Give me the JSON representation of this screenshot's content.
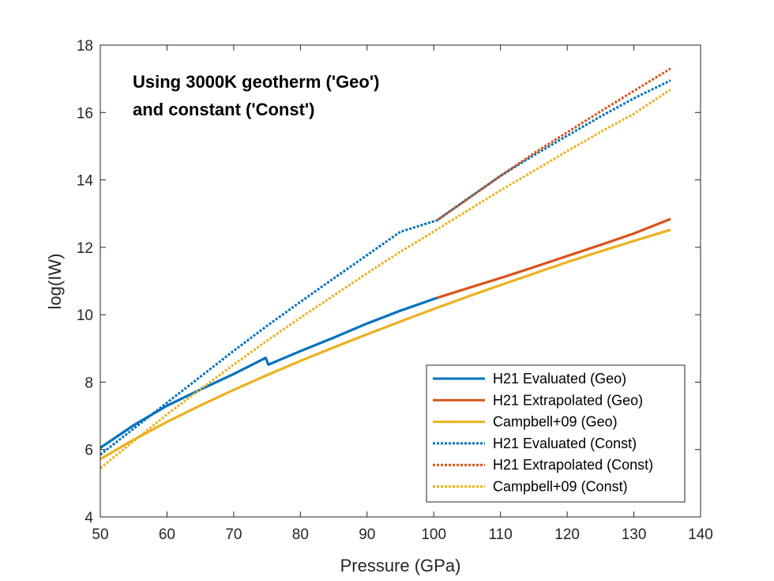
{
  "chart_data": {
    "type": "line",
    "xlabel": "Pressure (GPa)",
    "ylabel": "log(IW)",
    "xlim": [
      50,
      140
    ],
    "ylim": [
      4,
      18
    ],
    "xticks": [
      "50",
      "60",
      "70",
      "80",
      "90",
      "100",
      "110",
      "120",
      "130",
      "140"
    ],
    "yticks": [
      "4",
      "6",
      "8",
      "10",
      "12",
      "14",
      "16",
      "18"
    ],
    "annotation": [
      "Using 3000K geotherm ('Geo')",
      "and constant ('Const')"
    ],
    "grid": false,
    "legend_position": "bottom-right",
    "series": [
      {
        "name": "H21 Evaluated (Geo)",
        "color": "#0072BD",
        "style": "solid",
        "x": [
          50,
          55,
          60,
          65,
          70,
          74.8,
          75.2,
          80,
          85,
          90,
          95,
          100.5
        ],
        "y": [
          6.05,
          6.72,
          7.3,
          7.78,
          8.24,
          8.72,
          8.52,
          8.92,
          9.32,
          9.74,
          10.12,
          10.5
        ]
      },
      {
        "name": "H21 Extrapolated (Geo)",
        "color": "#D95319",
        "style": "solid",
        "x": [
          100.5,
          105,
          110,
          115,
          120,
          125,
          130,
          135.5
        ],
        "y": [
          10.5,
          10.78,
          11.09,
          11.41,
          11.74,
          12.07,
          12.41,
          12.84
        ]
      },
      {
        "name": "Campbell+09 (Geo)",
        "color": "#EDB120",
        "style": "solid",
        "x": [
          50,
          55,
          60,
          65,
          70,
          75,
          80,
          85,
          90,
          95,
          100,
          105,
          110,
          115,
          120,
          125,
          130,
          135.5
        ],
        "y": [
          5.72,
          6.29,
          6.82,
          7.31,
          7.77,
          8.21,
          8.63,
          9.03,
          9.42,
          9.8,
          10.17,
          10.53,
          10.88,
          11.22,
          11.56,
          11.88,
          12.19,
          12.52
        ]
      },
      {
        "name": "H21 Evaluated (Const)",
        "color": "#0072BD",
        "style": "dotted",
        "x": [
          50,
          55,
          60,
          65,
          70,
          75,
          80,
          85,
          90,
          95,
          100.5,
          105,
          110,
          115,
          120,
          125,
          130,
          135.5
        ],
        "y": [
          5.85,
          6.62,
          7.39,
          8.16,
          8.93,
          9.67,
          10.38,
          11.08,
          11.77,
          12.46,
          12.8,
          13.43,
          14.12,
          14.73,
          15.31,
          15.88,
          16.42,
          16.95
        ]
      },
      {
        "name": "H21 Extrapolated (Const)",
        "color": "#D95319",
        "style": "dotted",
        "x": [
          100.5,
          105,
          110,
          115,
          120,
          125,
          130,
          135.5
        ],
        "y": [
          12.8,
          13.42,
          14.12,
          14.79,
          15.41,
          16.03,
          16.64,
          17.3
        ]
      },
      {
        "name": "Campbell+09 (Const)",
        "color": "#EDB120",
        "style": "dotted",
        "x": [
          50,
          55,
          60,
          65,
          70,
          75,
          80,
          85,
          90,
          95,
          100,
          105,
          110,
          115,
          120,
          125,
          130,
          135.5
        ],
        "y": [
          5.45,
          6.25,
          7.04,
          7.79,
          8.52,
          9.23,
          9.91,
          10.57,
          11.23,
          11.87,
          12.47,
          13.08,
          13.69,
          14.27,
          14.85,
          15.42,
          15.96,
          16.68
        ]
      }
    ]
  }
}
